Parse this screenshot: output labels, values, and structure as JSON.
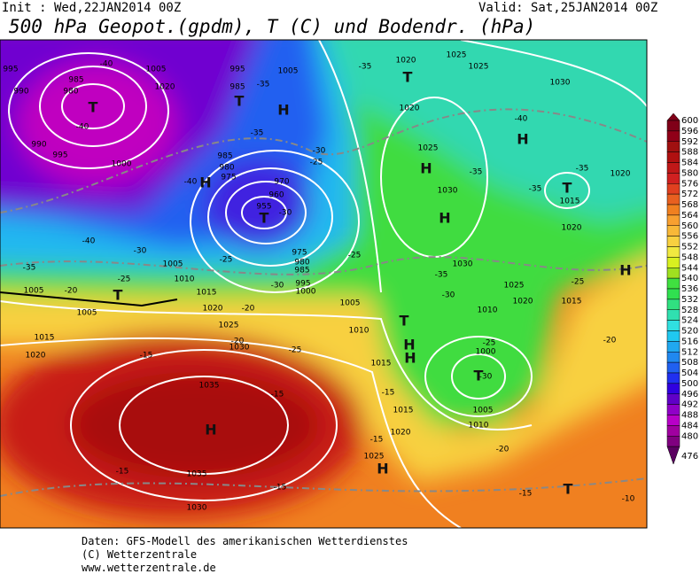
{
  "header": {
    "init": "Init : Wed,22JAN2014 00Z",
    "valid": "Valid: Sat,25JAN2014 00Z",
    "title": "500 hPa Geopot.(gpdm), T (C) und Bodendr. (hPa)"
  },
  "map": {
    "labels": [
      "995",
      "985",
      "980",
      "T",
      "990",
      "-40",
      "990",
      "995",
      "1000",
      "1005",
      "1020",
      "-40",
      "995",
      "985",
      "T",
      "-35",
      "H",
      "1005",
      "-35",
      "985",
      "980",
      "975",
      "970",
      "960",
      "955",
      "T",
      "-30",
      "-40",
      "H",
      "-40",
      "-35",
      "-30",
      "1005",
      "1010",
      "-25",
      "-25",
      "1015",
      "T",
      "1005",
      "-20",
      "1005",
      "1020",
      "-20",
      "1015",
      "1020",
      "1025",
      "-20",
      "1030",
      "-15",
      "1035",
      "-15",
      "H",
      "-15",
      "1035",
      "-15",
      "1030",
      "-35",
      "T",
      "1020",
      "1025",
      "1020",
      "1025",
      "H",
      "1030",
      "H",
      "-35",
      "1030",
      "-40",
      "H",
      "-35",
      "T",
      "1015",
      "-35",
      "1020",
      "1020",
      "1030",
      "-35",
      "1025",
      "1020",
      "-30",
      "1010",
      "-25",
      "H",
      "1015",
      "1005",
      "1010",
      "T",
      "H",
      "H",
      "1015",
      "-25",
      "1000",
      "T",
      "-30",
      "1005",
      "1015",
      "-15",
      "1010",
      "1020",
      "-15",
      "1025",
      "H",
      "-20",
      "-20",
      "-15",
      "T",
      "-10",
      "-25",
      "1025",
      "-30",
      "-25",
      "-30",
      "975",
      "980",
      "985",
      "995",
      "1000",
      "-25"
    ]
  },
  "colorbar": {
    "labels": [
      600,
      596,
      592,
      588,
      584,
      580,
      576,
      572,
      568,
      564,
      560,
      556,
      552,
      548,
      544,
      540,
      536,
      532,
      528,
      524,
      520,
      516,
      512,
      508,
      504,
      500,
      496,
      492,
      488,
      484,
      480,
      476
    ],
    "colors": [
      "#800018",
      "#900018",
      "#a01010",
      "#b01010",
      "#c01818",
      "#d02020",
      "#e04020",
      "#e86020",
      "#f08020",
      "#f8a030",
      "#f8b838",
      "#f8d040",
      "#f0e840",
      "#d8f020",
      "#a0e020",
      "#40e040",
      "#30e050",
      "#30e080",
      "#30e0b0",
      "#30e0e0",
      "#20c8f0",
      "#20a8f0",
      "#2088f0",
      "#2060f0",
      "#2030f0",
      "#3000e0",
      "#6000c8",
      "#9000c8",
      "#b800c8",
      "#a000a0",
      "#800080",
      "#5a0060"
    ]
  },
  "footer": [
    "Daten: GFS-Modell des amerikanischen Wetterdienstes",
    "(C) Wetterzentrale",
    "www.wetterzentrale.de"
  ]
}
